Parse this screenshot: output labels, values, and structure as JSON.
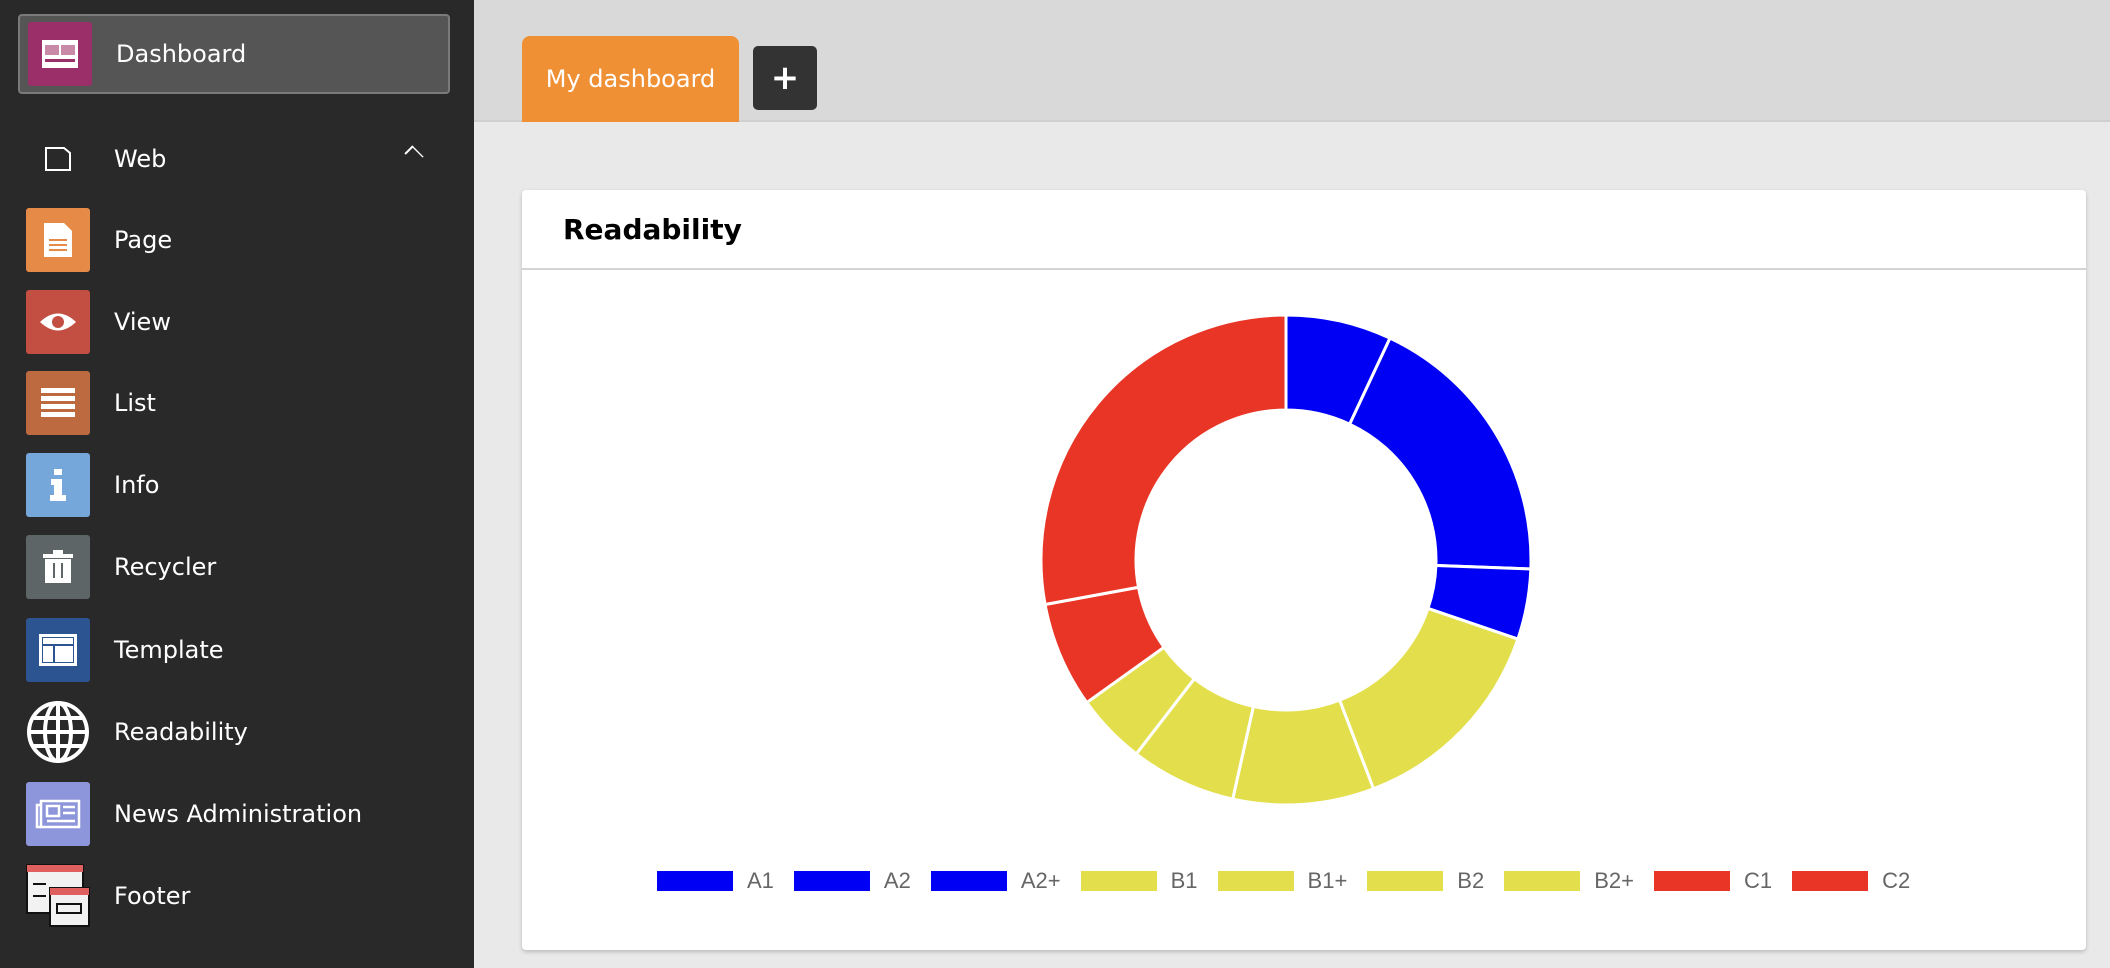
{
  "sidebar": {
    "dashboard": {
      "label": "Dashboard",
      "icon": "dashboard-icon",
      "color": "#9b2f6a"
    },
    "web": {
      "label": "Web",
      "icon": "page-outline-icon"
    },
    "items": [
      {
        "label": "Page",
        "icon": "page-icon",
        "color": "#e58a47"
      },
      {
        "label": "View",
        "icon": "eye-icon",
        "color": "#c24f42"
      },
      {
        "label": "List",
        "icon": "list-icon",
        "color": "#bd6a40"
      },
      {
        "label": "Info",
        "icon": "info-icon",
        "color": "#76a7db"
      },
      {
        "label": "Recycler",
        "icon": "trash-icon",
        "color": "#5e6566"
      },
      {
        "label": "Template",
        "icon": "template-icon",
        "color": "#2c5490"
      },
      {
        "label": "Readability",
        "icon": "globe-icon",
        "color": "transparent"
      },
      {
        "label": "News Administration",
        "icon": "newspaper-icon",
        "color": "#8d96db"
      },
      {
        "label": "Footer",
        "icon": "footer-icon",
        "color": "transparent"
      }
    ]
  },
  "tabs": {
    "active": "My dashboard",
    "add": "+"
  },
  "widget": {
    "title": "Readability"
  },
  "chart_data": {
    "type": "pie",
    "variant": "doughnut",
    "title": "Readability",
    "categories": [
      "A1",
      "A2",
      "A2+",
      "B1",
      "B1+",
      "B2",
      "B2+",
      "C1",
      "C2"
    ],
    "values": [
      3,
      8,
      2,
      6,
      4,
      3,
      2,
      3,
      12
    ],
    "colors": [
      "#0000f5",
      "#0000f5",
      "#0000f5",
      "#e3df4c",
      "#e3df4c",
      "#e3df4c",
      "#e3df4c",
      "#e93526",
      "#e93526"
    ],
    "legend": "bottom"
  }
}
